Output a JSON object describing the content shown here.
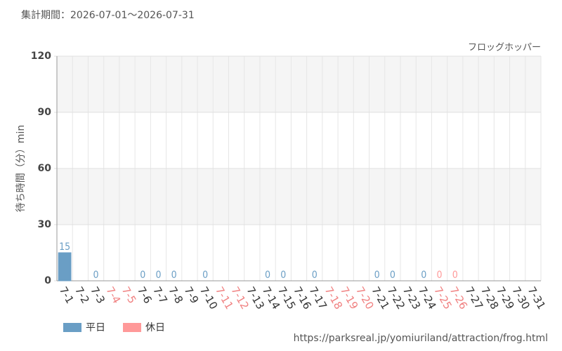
{
  "chart_data": {
    "type": "bar",
    "title": "集計期間：2026-07-01～2026-07-31",
    "subtitle": "フロッグホッパー",
    "y_label": "待ち時間（分）min",
    "source": "https://parksreal.jp/yomiuriland/attraction/frog.html",
    "categories": [
      "7-1",
      "7-2",
      "7-3",
      "7-4",
      "7-5",
      "7-6",
      "7-7",
      "7-8",
      "7-9",
      "7-10",
      "7-11",
      "7-12",
      "7-13",
      "7-14",
      "7-15",
      "7-16",
      "7-17",
      "7-18",
      "7-19",
      "7-20",
      "7-21",
      "7-22",
      "7-23",
      "7-24",
      "7-25",
      "7-26",
      "7-27",
      "7-28",
      "7-29",
      "7-30",
      "7-31"
    ],
    "category_colors": [
      "#333",
      "#333",
      "#333",
      "#f08080",
      "#f08080",
      "#333",
      "#333",
      "#333",
      "#333",
      "#333",
      "#f08080",
      "#f08080",
      "#333",
      "#333",
      "#333",
      "#333",
      "#333",
      "#f08080",
      "#f08080",
      "#f08080",
      "#333",
      "#333",
      "#333",
      "#333",
      "#f08080",
      "#f08080",
      "#333",
      "#333",
      "#333",
      "#333",
      "#333"
    ],
    "series": [
      {
        "name": "平日",
        "color": "#6a9ec5",
        "values": [
          15,
          null,
          0,
          null,
          null,
          0,
          0,
          0,
          null,
          0,
          null,
          null,
          null,
          0,
          0,
          null,
          0,
          null,
          null,
          null,
          0,
          0,
          null,
          0,
          null,
          null,
          null,
          null,
          null,
          null,
          null
        ]
      },
      {
        "name": "休日",
        "color": "#ff9999",
        "values": [
          null,
          null,
          null,
          null,
          null,
          null,
          null,
          null,
          null,
          null,
          null,
          null,
          null,
          null,
          null,
          null,
          null,
          null,
          null,
          null,
          null,
          null,
          null,
          null,
          0,
          0,
          null,
          null,
          null,
          null,
          null
        ]
      }
    ],
    "ylim": [
      0,
      120
    ],
    "yticks": [
      0,
      30,
      60,
      90,
      120
    ],
    "grid": true
  }
}
